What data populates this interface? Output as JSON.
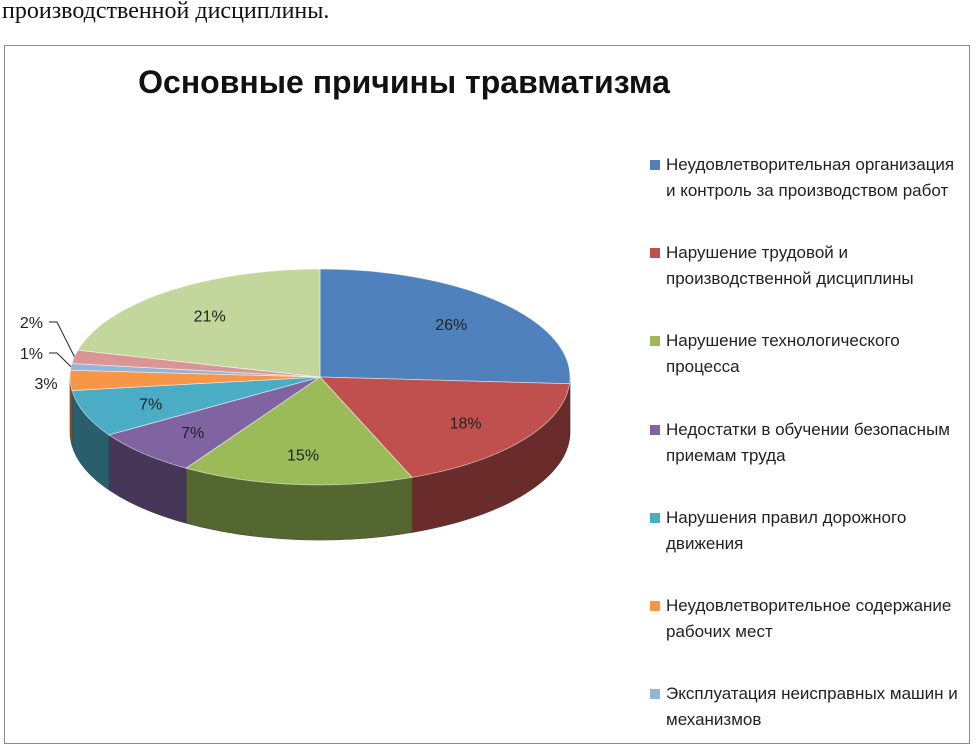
{
  "page": {
    "top_text": "производственной дисциплины."
  },
  "chart_data": {
    "type": "pie",
    "title": "Основные причины травматизма",
    "start_angle_deg": 90,
    "direction": "clockwise",
    "style": "3d",
    "legend_position": "right",
    "slices": [
      {
        "label": "Неудовлетворительная организация и контроль  за производством работ",
        "value": 26,
        "value_label": "26%",
        "color": "#4f81bd"
      },
      {
        "label": "Нарушение трудовой и производственной дисциплины",
        "value": 18,
        "value_label": "18%",
        "color": "#c0504d"
      },
      {
        "label": "Нарушение технологического процесса",
        "value": 15,
        "value_label": "15%",
        "color": "#9bbb59"
      },
      {
        "label": "Недостатки в обучении безопасным приемам труда",
        "value": 7,
        "value_label": "7%",
        "color": "#8064a2"
      },
      {
        "label": "Нарушения правил дорожного движения",
        "value": 7,
        "value_label": "7%",
        "color": "#4bacc6"
      },
      {
        "label": "Неудовлетворительное содержание рабочих мест",
        "value": 3,
        "value_label": "3%",
        "color": "#f79646"
      },
      {
        "label": "Эксплуатация неисправных машин и механизмов",
        "value": 1,
        "value_label": "1%",
        "color": "#95b3d7"
      },
      {
        "label": "",
        "value": 2,
        "value_label": "2%",
        "color": "#d99694"
      },
      {
        "label": "",
        "value": 21,
        "value_label": "21%",
        "color": "#c3d69b"
      }
    ]
  }
}
